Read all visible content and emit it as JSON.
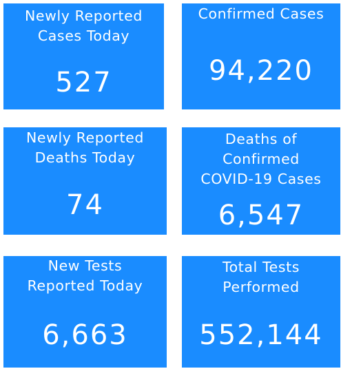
{
  "tiles": [
    {
      "label": "Newly Reported\nCases Today",
      "value": "527"
    },
    {
      "label": "Confirmed Cases",
      "value": "94,220"
    },
    {
      "label": "Newly Reported\nDeaths Today",
      "value": "74"
    },
    {
      "label": "Deaths of\nConfirmed\nCOVID-19 Cases",
      "value": "6,547"
    },
    {
      "label": "New Tests\nReported Today",
      "value": "6,663"
    },
    {
      "label": "Total Tests\nPerformed",
      "value": "552,144"
    }
  ],
  "colors": {
    "tile_background": "#1a8cff",
    "text": "#ffffff"
  }
}
